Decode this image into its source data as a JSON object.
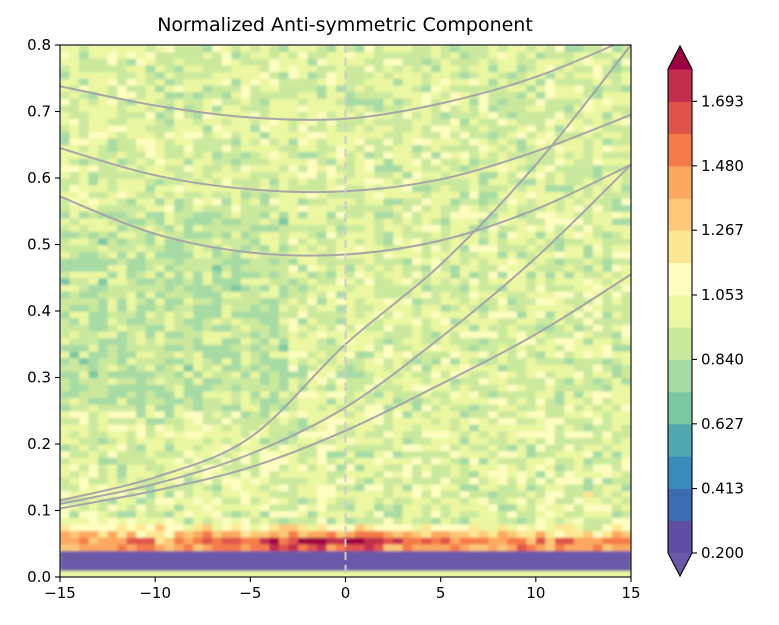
{
  "chart_data": {
    "type": "heatmap",
    "title": "Normalized Anti-symmetric Component",
    "xlabel": "",
    "ylabel": "",
    "xlim": [
      -15,
      15
    ],
    "ylim": [
      0,
      0.8
    ],
    "x_ticks": [
      "−15",
      "−10",
      "−5",
      "0",
      "5",
      "10",
      "15"
    ],
    "x_tick_values": [
      -15,
      -10,
      -5,
      0,
      5,
      10,
      15
    ],
    "y_ticks": [
      "0.0",
      "0.1",
      "0.2",
      "0.3",
      "0.4",
      "0.5",
      "0.6",
      "0.7",
      "0.8"
    ],
    "y_tick_values": [
      0,
      0.1,
      0.2,
      0.3,
      0.4,
      0.5,
      0.6,
      0.7,
      0.8
    ],
    "colorbar": {
      "ticks": [
        "0.200",
        "0.413",
        "0.627",
        "0.840",
        "1.053",
        "1.267",
        "1.480",
        "1.693"
      ],
      "tick_values": [
        0.2,
        0.413,
        0.627,
        0.84,
        1.053,
        1.267,
        1.48,
        1.693
      ],
      "extend": "both",
      "levels": [
        0.2,
        0.307,
        0.413,
        0.52,
        0.627,
        0.733,
        0.84,
        0.947,
        1.053,
        1.16,
        1.267,
        1.373,
        1.48,
        1.587,
        1.693,
        1.8
      ],
      "colors": [
        "#5e4fa2",
        "#3e6cb2",
        "#3a8cbd",
        "#4fa7b0",
        "#7cc8a5",
        "#a7dba4",
        "#cbe99d",
        "#ebf7a1",
        "#fefec0",
        "#fee793",
        "#fdc877",
        "#fca85e",
        "#f57c4a",
        "#e0544b",
        "#c32e4f",
        "#9e0142"
      ],
      "under_color": "#6b58a8",
      "over_color": "#9e0142"
    },
    "field": {
      "description_values": "normalized power; ~0.9-1.1 background, maximum ~1.8 near y=0.05, minimum ~0.2 below y=0.04",
      "background_level": 0.95,
      "peak_band_y": 0.052,
      "low_band_y_max": 0.04
    },
    "dispersion_curves": {
      "color": "#a6a6a6",
      "symmetric_family": [
        {
          "x": [
            -15,
            -10,
            -5,
            0,
            5,
            10,
            15
          ],
          "y": [
            0.738,
            0.709,
            0.691,
            0.689,
            0.712,
            0.752,
            0.811
          ]
        },
        {
          "x": [
            -15,
            -10,
            -5,
            0,
            5,
            10,
            15
          ],
          "y": [
            0.645,
            0.604,
            0.583,
            0.58,
            0.598,
            0.64,
            0.695
          ]
        },
        {
          "x": [
            -15,
            -10,
            -5,
            0,
            5,
            10,
            15
          ],
          "y": [
            0.572,
            0.516,
            0.488,
            0.485,
            0.506,
            0.553,
            0.62
          ]
        }
      ],
      "kelvin_like_family": [
        {
          "x": [
            -15,
            -10,
            -5,
            0,
            5,
            10,
            15
          ],
          "y": [
            0.115,
            0.15,
            0.21,
            0.35,
            0.47,
            0.62,
            0.8
          ]
        },
        {
          "x": [
            -15,
            -10,
            -5,
            0,
            5,
            10,
            15
          ],
          "y": [
            0.11,
            0.14,
            0.185,
            0.255,
            0.36,
            0.48,
            0.62
          ]
        },
        {
          "x": [
            -15,
            -10,
            -5,
            0,
            5,
            10,
            15
          ],
          "y": [
            0.103,
            0.13,
            0.165,
            0.22,
            0.29,
            0.365,
            0.455
          ]
        }
      ]
    },
    "zero_line_x": 0
  }
}
